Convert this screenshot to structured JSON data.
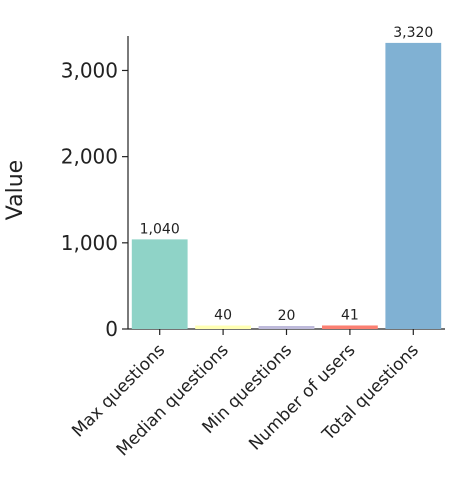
{
  "chart_data": {
    "type": "bar",
    "title": "",
    "xlabel": "",
    "ylabel": "Value",
    "categories": [
      "Max questions",
      "Median questions",
      "Min questions",
      "Number of users",
      "Total questions"
    ],
    "values": [
      1040,
      40,
      20,
      41,
      3320
    ],
    "value_labels": [
      "1,040",
      "40",
      "20",
      "41",
      "3,320"
    ],
    "colors": [
      "#8fd3c7",
      "#ffffb3",
      "#bebada",
      "#fb8072",
      "#80b1d3"
    ],
    "ylim": [
      0,
      3400
    ],
    "yticks": [
      0,
      1000,
      2000,
      3000
    ],
    "ytick_labels": [
      "0",
      "1,000",
      "2,000",
      "3,000"
    ],
    "grid": false,
    "legend": "none"
  }
}
